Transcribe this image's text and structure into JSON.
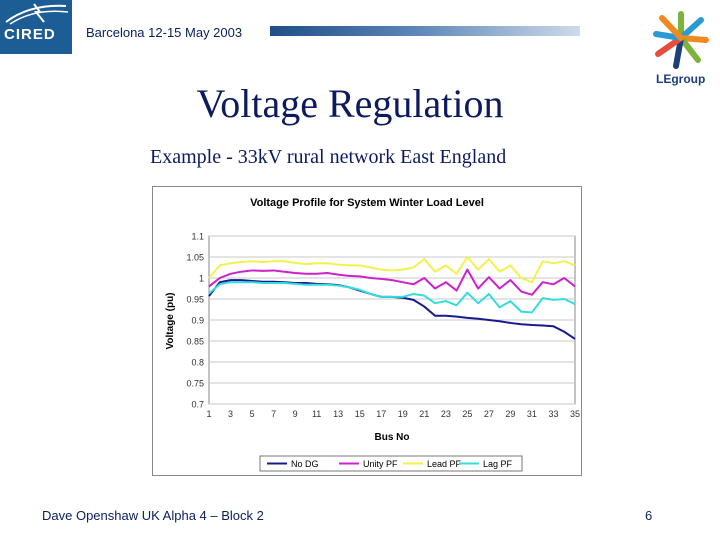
{
  "header": {
    "logo_left": "CIRED",
    "date": "Barcelona 12-15 May 2003",
    "logo_right": "LEgroup"
  },
  "slide": {
    "title": "Voltage Regulation",
    "subtitle": "Example - 33kV rural network East England"
  },
  "chart_data": {
    "type": "line",
    "title": "Voltage Profile for System Winter Load Level",
    "xlabel": "Bus No",
    "ylabel": "Voltage (pu)",
    "xlim": [
      1,
      35
    ],
    "ylim": [
      0.7,
      1.1
    ],
    "x_ticks": [
      1,
      3,
      5,
      7,
      9,
      11,
      13,
      15,
      17,
      19,
      21,
      23,
      25,
      27,
      29,
      31,
      33,
      35
    ],
    "y_ticks": [
      "0.7",
      "0.75",
      "0.8",
      "0.85",
      "0.9",
      "0.95",
      "1",
      "1.05",
      "1.1"
    ],
    "grid": true,
    "legend_position": "bottom",
    "x": [
      1,
      2,
      3,
      4,
      5,
      6,
      7,
      8,
      9,
      10,
      11,
      12,
      13,
      14,
      15,
      16,
      17,
      18,
      19,
      20,
      21,
      22,
      23,
      24,
      25,
      26,
      27,
      28,
      29,
      30,
      31,
      32,
      33,
      34,
      35
    ],
    "series": [
      {
        "name": "No DG",
        "color": "#1a1a8c",
        "values": [
          0.957,
          0.99,
          0.995,
          0.995,
          0.993,
          0.991,
          0.991,
          0.99,
          0.988,
          0.988,
          0.986,
          0.985,
          0.983,
          0.978,
          0.97,
          0.962,
          0.955,
          0.955,
          0.953,
          0.948,
          0.932,
          0.91,
          0.91,
          0.908,
          0.905,
          0.903,
          0.9,
          0.897,
          0.893,
          0.89,
          0.888,
          0.887,
          0.885,
          0.872,
          0.855
        ]
      },
      {
        "name": "Unity PF",
        "color": "#cc22cc",
        "values": [
          0.98,
          1.0,
          1.01,
          1.015,
          1.018,
          1.017,
          1.018,
          1.015,
          1.012,
          1.01,
          1.01,
          1.012,
          1.008,
          1.005,
          1.004,
          1.0,
          0.998,
          0.995,
          0.99,
          0.985,
          1.0,
          0.975,
          0.99,
          0.97,
          1.02,
          0.975,
          1.002,
          0.975,
          0.995,
          0.968,
          0.96,
          0.99,
          0.985,
          1.0,
          0.98
        ]
      },
      {
        "name": "Lead PF",
        "color": "#f2f24a",
        "values": [
          1.0,
          1.03,
          1.035,
          1.038,
          1.04,
          1.038,
          1.04,
          1.04,
          1.036,
          1.033,
          1.035,
          1.035,
          1.032,
          1.03,
          1.03,
          1.025,
          1.02,
          1.018,
          1.02,
          1.025,
          1.045,
          1.015,
          1.03,
          1.01,
          1.05,
          1.02,
          1.045,
          1.015,
          1.03,
          1.0,
          0.99,
          1.04,
          1.035,
          1.04,
          1.03
        ]
      },
      {
        "name": "Lag PF",
        "color": "#33dddd",
        "values": [
          0.963,
          0.985,
          0.99,
          0.99,
          0.99,
          0.988,
          0.988,
          0.988,
          0.986,
          0.984,
          0.984,
          0.984,
          0.982,
          0.978,
          0.972,
          0.962,
          0.955,
          0.955,
          0.955,
          0.962,
          0.958,
          0.94,
          0.945,
          0.935,
          0.965,
          0.94,
          0.962,
          0.93,
          0.945,
          0.92,
          0.918,
          0.952,
          0.948,
          0.95,
          0.938
        ]
      }
    ]
  },
  "footer": {
    "left": "Dave Openshaw UK Alpha 4 – Block 2",
    "page_number": "6"
  }
}
